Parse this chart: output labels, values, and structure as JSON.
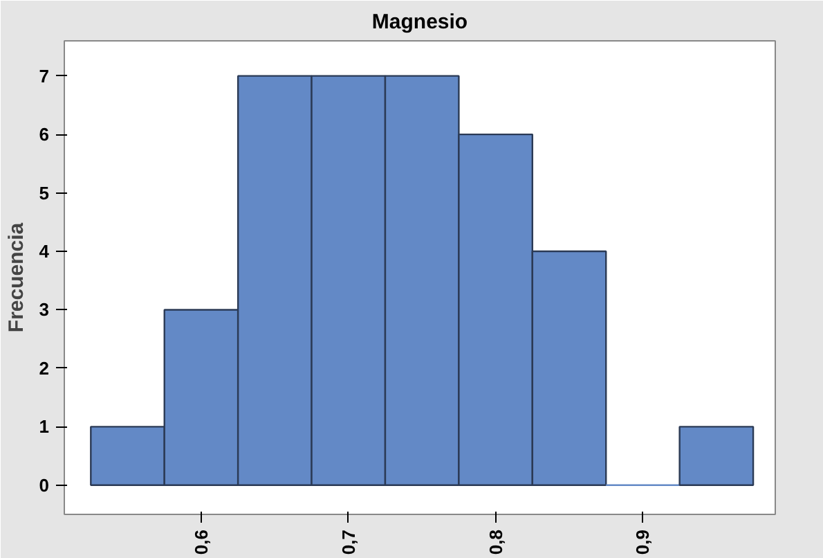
{
  "chart_data": {
    "type": "histogram",
    "title": "Magnesio",
    "ylabel": "Frecuencia",
    "bins": [
      0.525,
      0.575,
      0.625,
      0.675,
      0.725,
      0.775,
      0.825,
      0.875,
      0.925,
      0.975
    ],
    "values": [
      1,
      3,
      7,
      7,
      7,
      6,
      4,
      0,
      1
    ],
    "color": "#6389c6",
    "xlim": [
      0.507,
      0.99
    ],
    "ylim": [
      -0.5,
      7.6
    ],
    "xticks": [
      {
        "value": 0.6,
        "label": "0,6"
      },
      {
        "value": 0.7,
        "label": "0,7"
      },
      {
        "value": 0.8,
        "label": "0,8"
      },
      {
        "value": 0.9,
        "label": "0,9"
      }
    ],
    "yticks": [
      0,
      1,
      2,
      3,
      4,
      5,
      6,
      7
    ],
    "grid": false
  }
}
